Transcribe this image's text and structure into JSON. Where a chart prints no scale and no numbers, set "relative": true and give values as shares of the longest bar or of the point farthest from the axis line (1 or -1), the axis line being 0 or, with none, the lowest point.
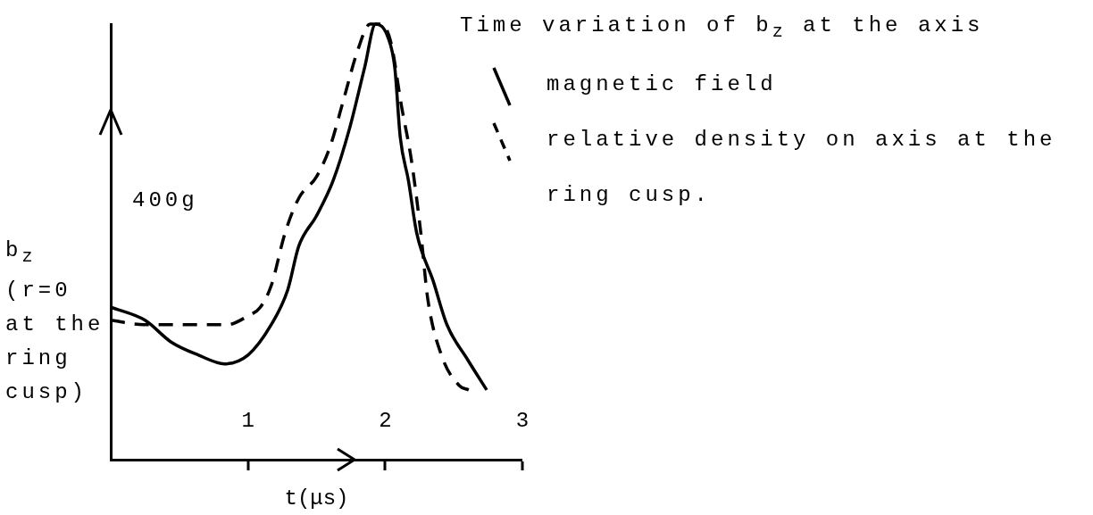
{
  "chart_data": {
    "type": "line",
    "title": "Time variation of b$_{z}$ at the axis",
    "xlabel": "t(μs)",
    "ylabel": "b$_{z}$ (r=0 at the ring cusp)",
    "relative": true,
    "xlim": [
      0,
      3
    ],
    "xticks": [
      1,
      2,
      3
    ],
    "grid": false,
    "legend": "top right",
    "marker": "none",
    "annotations": [
      "400g"
    ],
    "series": [
      {
        "name": "magnetic field",
        "color": "#000000",
        "line_style": "solid",
        "x": [
          0,
          0.25,
          0.44,
          0.64,
          0.83,
          1.0,
          1.17,
          1.29,
          1.37,
          1.5,
          1.62,
          1.74,
          1.85,
          1.93,
          2.02,
          2.07,
          2.11,
          2.17,
          2.23,
          2.35,
          2.45,
          2.6,
          2.74
        ],
        "values": [
          0.35,
          0.32,
          0.27,
          0.24,
          0.22,
          0.24,
          0.31,
          0.39,
          0.49,
          0.56,
          0.64,
          0.76,
          0.9,
          1.0,
          0.97,
          0.9,
          0.74,
          0.64,
          0.52,
          0.41,
          0.31,
          0.23,
          0.16
        ]
      },
      {
        "name": "relative density on axis at the ring cusp.",
        "color": "#000000",
        "line_style": "dashed",
        "x": [
          0,
          0.24,
          0.49,
          0.85,
          1.0,
          1.09,
          1.17,
          1.27,
          1.37,
          1.5,
          1.6,
          1.7,
          1.8,
          1.89,
          1.97,
          2.04,
          2.12,
          2.19,
          2.26,
          2.31,
          2.41,
          2.54,
          2.61
        ],
        "values": [
          0.32,
          0.31,
          0.31,
          0.31,
          0.33,
          0.35,
          0.4,
          0.52,
          0.6,
          0.65,
          0.72,
          0.83,
          0.94,
          1.0,
          1.0,
          0.96,
          0.81,
          0.69,
          0.52,
          0.37,
          0.24,
          0.17,
          0.16
        ]
      }
    ]
  }
}
